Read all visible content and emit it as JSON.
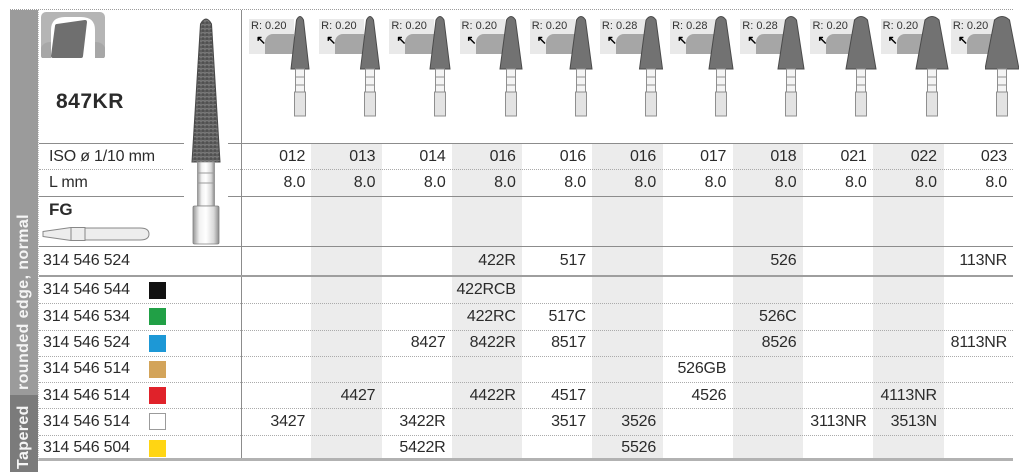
{
  "sidebar": {
    "category_label": "Tapered",
    "subcategory_label": "rounded edge, normal"
  },
  "product": {
    "model": "847KR"
  },
  "row_headers": {
    "iso": "ISO ø 1/10 mm",
    "length": "L mm",
    "shank": "FG"
  },
  "icons": {
    "radius_arrow_glyph": "↖"
  },
  "columns": [
    {
      "radius": "R: 0.20",
      "iso": "012",
      "length": "8.0"
    },
    {
      "radius": "R: 0.20",
      "iso": "013",
      "length": "8.0"
    },
    {
      "radius": "R: 0.20",
      "iso": "014",
      "length": "8.0"
    },
    {
      "radius": "R: 0.20",
      "iso": "016",
      "length": "8.0"
    },
    {
      "radius": "R: 0.20",
      "iso": "016",
      "length": "8.0"
    },
    {
      "radius": "R: 0.28",
      "iso": "016",
      "length": "8.0"
    },
    {
      "radius": "R: 0.28",
      "iso": "017",
      "length": "8.0"
    },
    {
      "radius": "R: 0.28",
      "iso": "018",
      "length": "8.0"
    },
    {
      "radius": "R: 0.20",
      "iso": "021",
      "length": "8.0"
    },
    {
      "radius": "R: 0.20",
      "iso": "022",
      "length": "8.0"
    },
    {
      "radius": "R: 0.20",
      "iso": "023",
      "length": "8.0"
    }
  ],
  "order_rows": [
    {
      "code": "314 546 524",
      "grit_color": null,
      "cells": [
        "",
        "",
        "",
        "422R",
        "517",
        "",
        "",
        "526",
        "",
        "",
        "113NR"
      ]
    },
    {
      "code": "314 546 544",
      "grit_color": "#111111",
      "cells": [
        "",
        "",
        "",
        "422RCB",
        "",
        "",
        "",
        "",
        "",
        "",
        ""
      ]
    },
    {
      "code": "314 546 534",
      "grit_color": "#21a046",
      "cells": [
        "",
        "",
        "",
        "422RC",
        "517C",
        "",
        "",
        "526C",
        "",
        "",
        ""
      ]
    },
    {
      "code": "314 546 524",
      "grit_color": "#1d98d6",
      "cells": [
        "",
        "",
        "8427",
        "8422R",
        "8517",
        "",
        "",
        "8526",
        "",
        "",
        "8113NR"
      ]
    },
    {
      "code": "314 546 514",
      "grit_color": "#d3a45a",
      "cells": [
        "",
        "",
        "",
        "",
        "",
        "",
        "526GB",
        "",
        "",
        "",
        ""
      ]
    },
    {
      "code": "314 546 514",
      "grit_color": "#e0222a",
      "cells": [
        "",
        "4427",
        "",
        "4422R",
        "4517",
        "",
        "4526",
        "",
        "",
        "4113NR",
        ""
      ]
    },
    {
      "code": "314 546 514",
      "grit_color": "#ffffff",
      "cells": [
        "3427",
        "",
        "3422R",
        "",
        "3517",
        "3526",
        "",
        "",
        "3113NR",
        "3513N",
        ""
      ]
    },
    {
      "code": "314 546 504",
      "grit_color": "#ffd513",
      "cells": [
        "",
        "",
        "5422R",
        "",
        "",
        "5526",
        "",
        "",
        "",
        "",
        ""
      ]
    }
  ],
  "palette": {
    "column_stripe": "#ececec",
    "sidebar_top": "#9b9b9b",
    "sidebar_bottom": "#7b7b7b"
  }
}
